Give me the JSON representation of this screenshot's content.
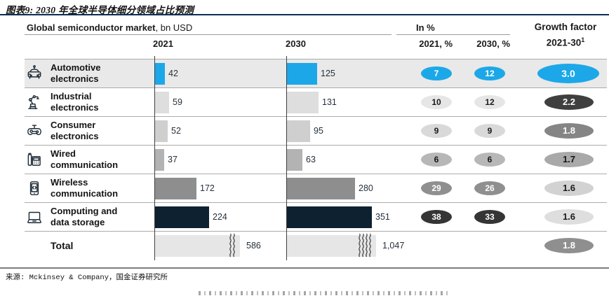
{
  "figure": {
    "title": "图表9: 2030 年全球半导体细分领域占比预测",
    "source": "来源: Mckinsey & Company，国金证券研究所"
  },
  "header": {
    "market_title": "Global semiconductor market",
    "market_unit": ", bn USD",
    "in_pct": "In %",
    "col_2021": "2021",
    "col_2030": "2030",
    "col_2021_pct": "2021, %",
    "col_2030_pct": "2030, %",
    "growth_line1": "Growth factor",
    "growth_line2": "2021-30",
    "growth_sup": "1"
  },
  "colors": {
    "accent_blue": "#1CA8E8",
    "dark_navy": "#0E2130",
    "axis": "#3F3F3F",
    "row_highlight": "#E9E9E9"
  },
  "table": {
    "rows": [
      {
        "icon": "car-icon",
        "label_lines": [
          "Automotive",
          "electronics"
        ],
        "v2021": 42,
        "v2030": 125,
        "p2021": "7",
        "p2030": "12",
        "growth": "3.0",
        "row_bg": "#E9E9E9",
        "bar_color": "#1CA8E8",
        "pct_bg": "#1CA8E8",
        "pct_fg": "#FFFFFF",
        "growth_bg": "#1CA8E8",
        "growth_fg": "#FFFFFF",
        "big_growth": true
      },
      {
        "icon": "robot-arm-icon",
        "label_lines": [
          "Industrial",
          "electronics"
        ],
        "v2021": 59,
        "v2030": 131,
        "p2021": "10",
        "p2030": "12",
        "growth": "2.2",
        "bar_color": "#DEDEDE",
        "pct_bg": "#E6E6E6",
        "pct_fg": "#1A1A1A",
        "growth_bg": "#3F3F3F",
        "growth_fg": "#FFFFFF"
      },
      {
        "icon": "game-controller-icon",
        "label_lines": [
          "Consumer",
          "electronics"
        ],
        "v2021": 52,
        "v2030": 95,
        "p2021": "9",
        "p2030": "9",
        "growth": "1.8",
        "bar_color": "#CFCFCF",
        "pct_bg": "#D9D9D9",
        "pct_fg": "#1A1A1A",
        "growth_bg": "#858585",
        "growth_fg": "#FFFFFF"
      },
      {
        "icon": "desk-phone-icon",
        "label_lines": [
          "Wired",
          "communication"
        ],
        "v2021": 37,
        "v2030": 63,
        "p2021": "6",
        "p2030": "6",
        "growth": "1.7",
        "bar_color": "#B3B3B3",
        "pct_bg": "#B7B7B7",
        "pct_fg": "#141414",
        "growth_bg": "#A9A9A9",
        "growth_fg": "#141414"
      },
      {
        "icon": "smartphone-icon",
        "label_lines": [
          "Wireless",
          "communication"
        ],
        "v2021": 172,
        "v2030": 280,
        "p2021": "29",
        "p2030": "26",
        "growth": "1.6",
        "bar_color": "#8E8E8E",
        "pct_bg": "#8F8F8F",
        "pct_fg": "#FFFFFF",
        "growth_bg": "#D2D2D2",
        "growth_fg": "#1A1A1A"
      },
      {
        "icon": "laptop-icon",
        "label_lines": [
          "Computing and",
          "data storage"
        ],
        "v2021": 224,
        "v2030": 351,
        "p2021": "38",
        "p2030": "33",
        "growth": "1.6",
        "bar_color": "#0E2130",
        "pct_bg": "#353535",
        "pct_fg": "#FFFFFF",
        "growth_bg": "#DEDEDE",
        "growth_fg": "#1A1A1A"
      }
    ],
    "total": {
      "label": "Total",
      "v2021": "586",
      "v2030": "1,047",
      "growth": "1.8",
      "bar_color": "#E6E6E6",
      "growth_bg": "#8F8F8F",
      "growth_fg": "#FFFFFF"
    }
  },
  "chart_data": {
    "type": "bar",
    "orientation": "horizontal",
    "title": "Global semiconductor market, bn USD",
    "categories": [
      "Automotive electronics",
      "Industrial electronics",
      "Consumer electronics",
      "Wired communication",
      "Wireless communication",
      "Computing and data storage",
      "Total"
    ],
    "series": [
      {
        "name": "2021, bn USD",
        "values": [
          42,
          59,
          52,
          37,
          172,
          224,
          586
        ]
      },
      {
        "name": "2030, bn USD",
        "values": [
          125,
          131,
          95,
          63,
          280,
          351,
          1047
        ]
      },
      {
        "name": "2021, %",
        "values": [
          7,
          10,
          9,
          6,
          29,
          38,
          null
        ]
      },
      {
        "name": "2030, %",
        "values": [
          12,
          12,
          9,
          6,
          26,
          33,
          null
        ]
      },
      {
        "name": "Growth factor 2021-30",
        "values": [
          3.0,
          2.2,
          1.8,
          1.7,
          1.6,
          1.6,
          1.8
        ]
      }
    ],
    "grid": false,
    "legend_position": "none",
    "notes": "Totals truncated with axis-break marks; 2021 total bar has 2 break waves, 2030 total bar has 4"
  }
}
